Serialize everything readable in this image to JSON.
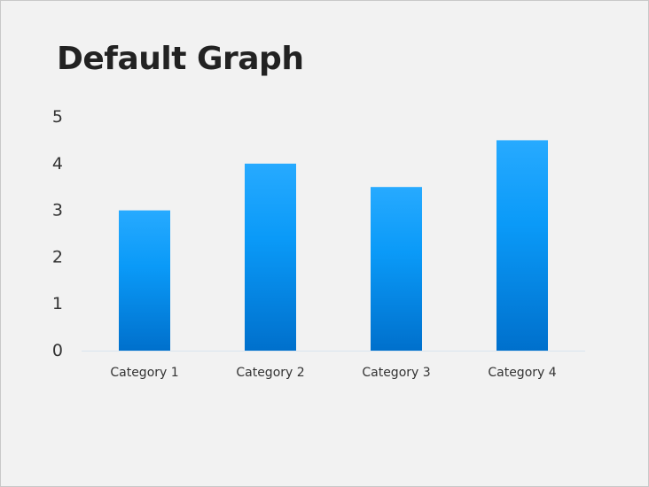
{
  "slide": {
    "title": "Default Graph"
  },
  "colors": {
    "background": "#f2f2f2",
    "bar_top": "#27aaff",
    "bar_mid": "#0a9af8",
    "bar_bottom": "#0070cc",
    "axis_line": "#d9e4ee",
    "text": "#333333"
  },
  "chart_data": {
    "type": "bar",
    "categories": [
      "Category 1",
      "Category 2",
      "Category 3",
      "Category 4"
    ],
    "values": [
      3,
      4,
      3.5,
      4.5
    ],
    "title": "Default Graph",
    "xlabel": "",
    "ylabel": "",
    "ylim": [
      0,
      5
    ],
    "yticks": [
      0,
      1,
      2,
      3,
      4,
      5
    ],
    "grid": false,
    "legend": "none"
  }
}
